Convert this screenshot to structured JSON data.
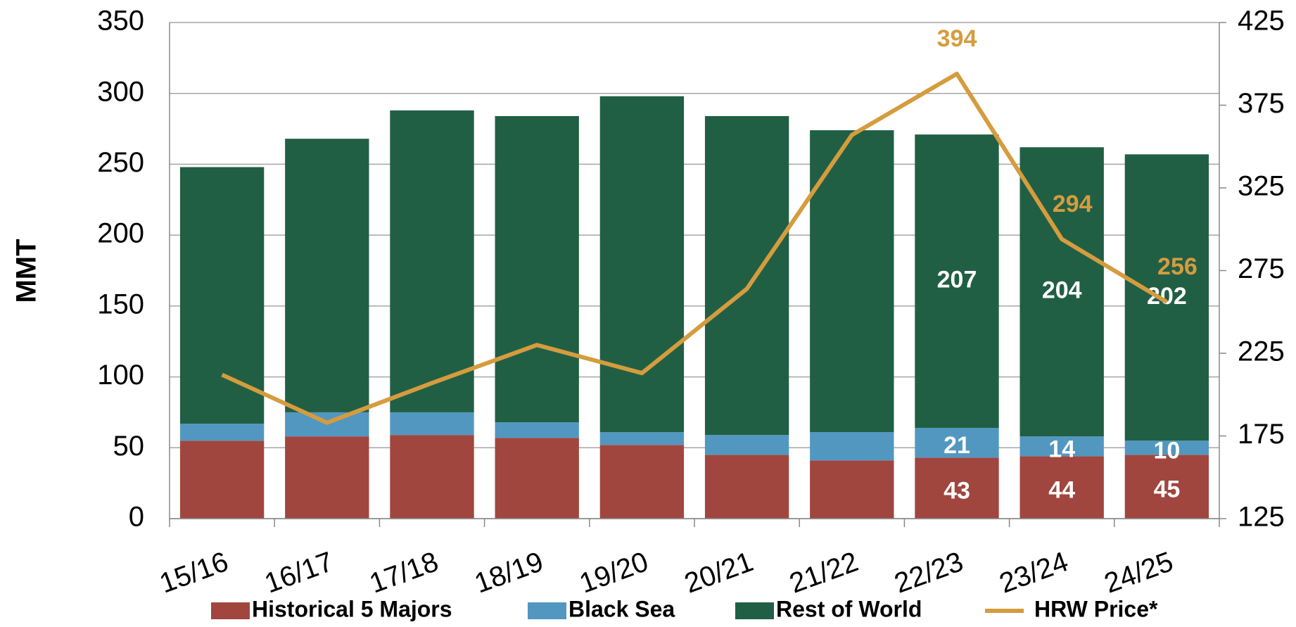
{
  "chart_data": {
    "type": "stacked-bar-line",
    "y_label": "MMT",
    "categories": [
      "15/16",
      "16/17",
      "17/18",
      "18/19",
      "19/20",
      "20/21",
      "21/22",
      "22/23",
      "23/24",
      "24/25"
    ],
    "series": [
      {
        "name": "Historical 5 Majors",
        "color": "#a0463f",
        "values": [
          55,
          58,
          59,
          57,
          52,
          45,
          41,
          43,
          44,
          45
        ],
        "value_labels": [
          null,
          null,
          null,
          null,
          null,
          null,
          null,
          "43",
          "44",
          "45"
        ]
      },
      {
        "name": "Black Sea",
        "color": "#5297c0",
        "values": [
          12,
          17,
          16,
          11,
          9,
          14,
          20,
          21,
          14,
          10
        ],
        "value_labels": [
          null,
          null,
          null,
          null,
          null,
          null,
          null,
          "21",
          "14",
          "10"
        ]
      },
      {
        "name": "Rest of World",
        "color": "#215f45",
        "values": [
          181,
          193,
          213,
          216,
          237,
          225,
          213,
          207,
          204,
          202
        ],
        "value_labels": [
          null,
          null,
          null,
          null,
          null,
          null,
          null,
          "207",
          "204",
          "202"
        ]
      },
      {
        "name": "HRW Price*",
        "color": "#d59c3e",
        "type": "line",
        "axis": "y2",
        "values": [
          212,
          183,
          207,
          230,
          213,
          264,
          357,
          394,
          294,
          256
        ],
        "value_labels": [
          null,
          null,
          null,
          null,
          null,
          null,
          null,
          "394",
          "294",
          "256"
        ]
      }
    ],
    "ylim": [
      0,
      350
    ],
    "yticks": [
      0,
      50,
      100,
      150,
      200,
      250,
      300,
      350
    ],
    "y2lim": [
      125,
      425
    ],
    "y2ticks": [
      125,
      175,
      225,
      275,
      325,
      375,
      425
    ],
    "grid": true
  }
}
